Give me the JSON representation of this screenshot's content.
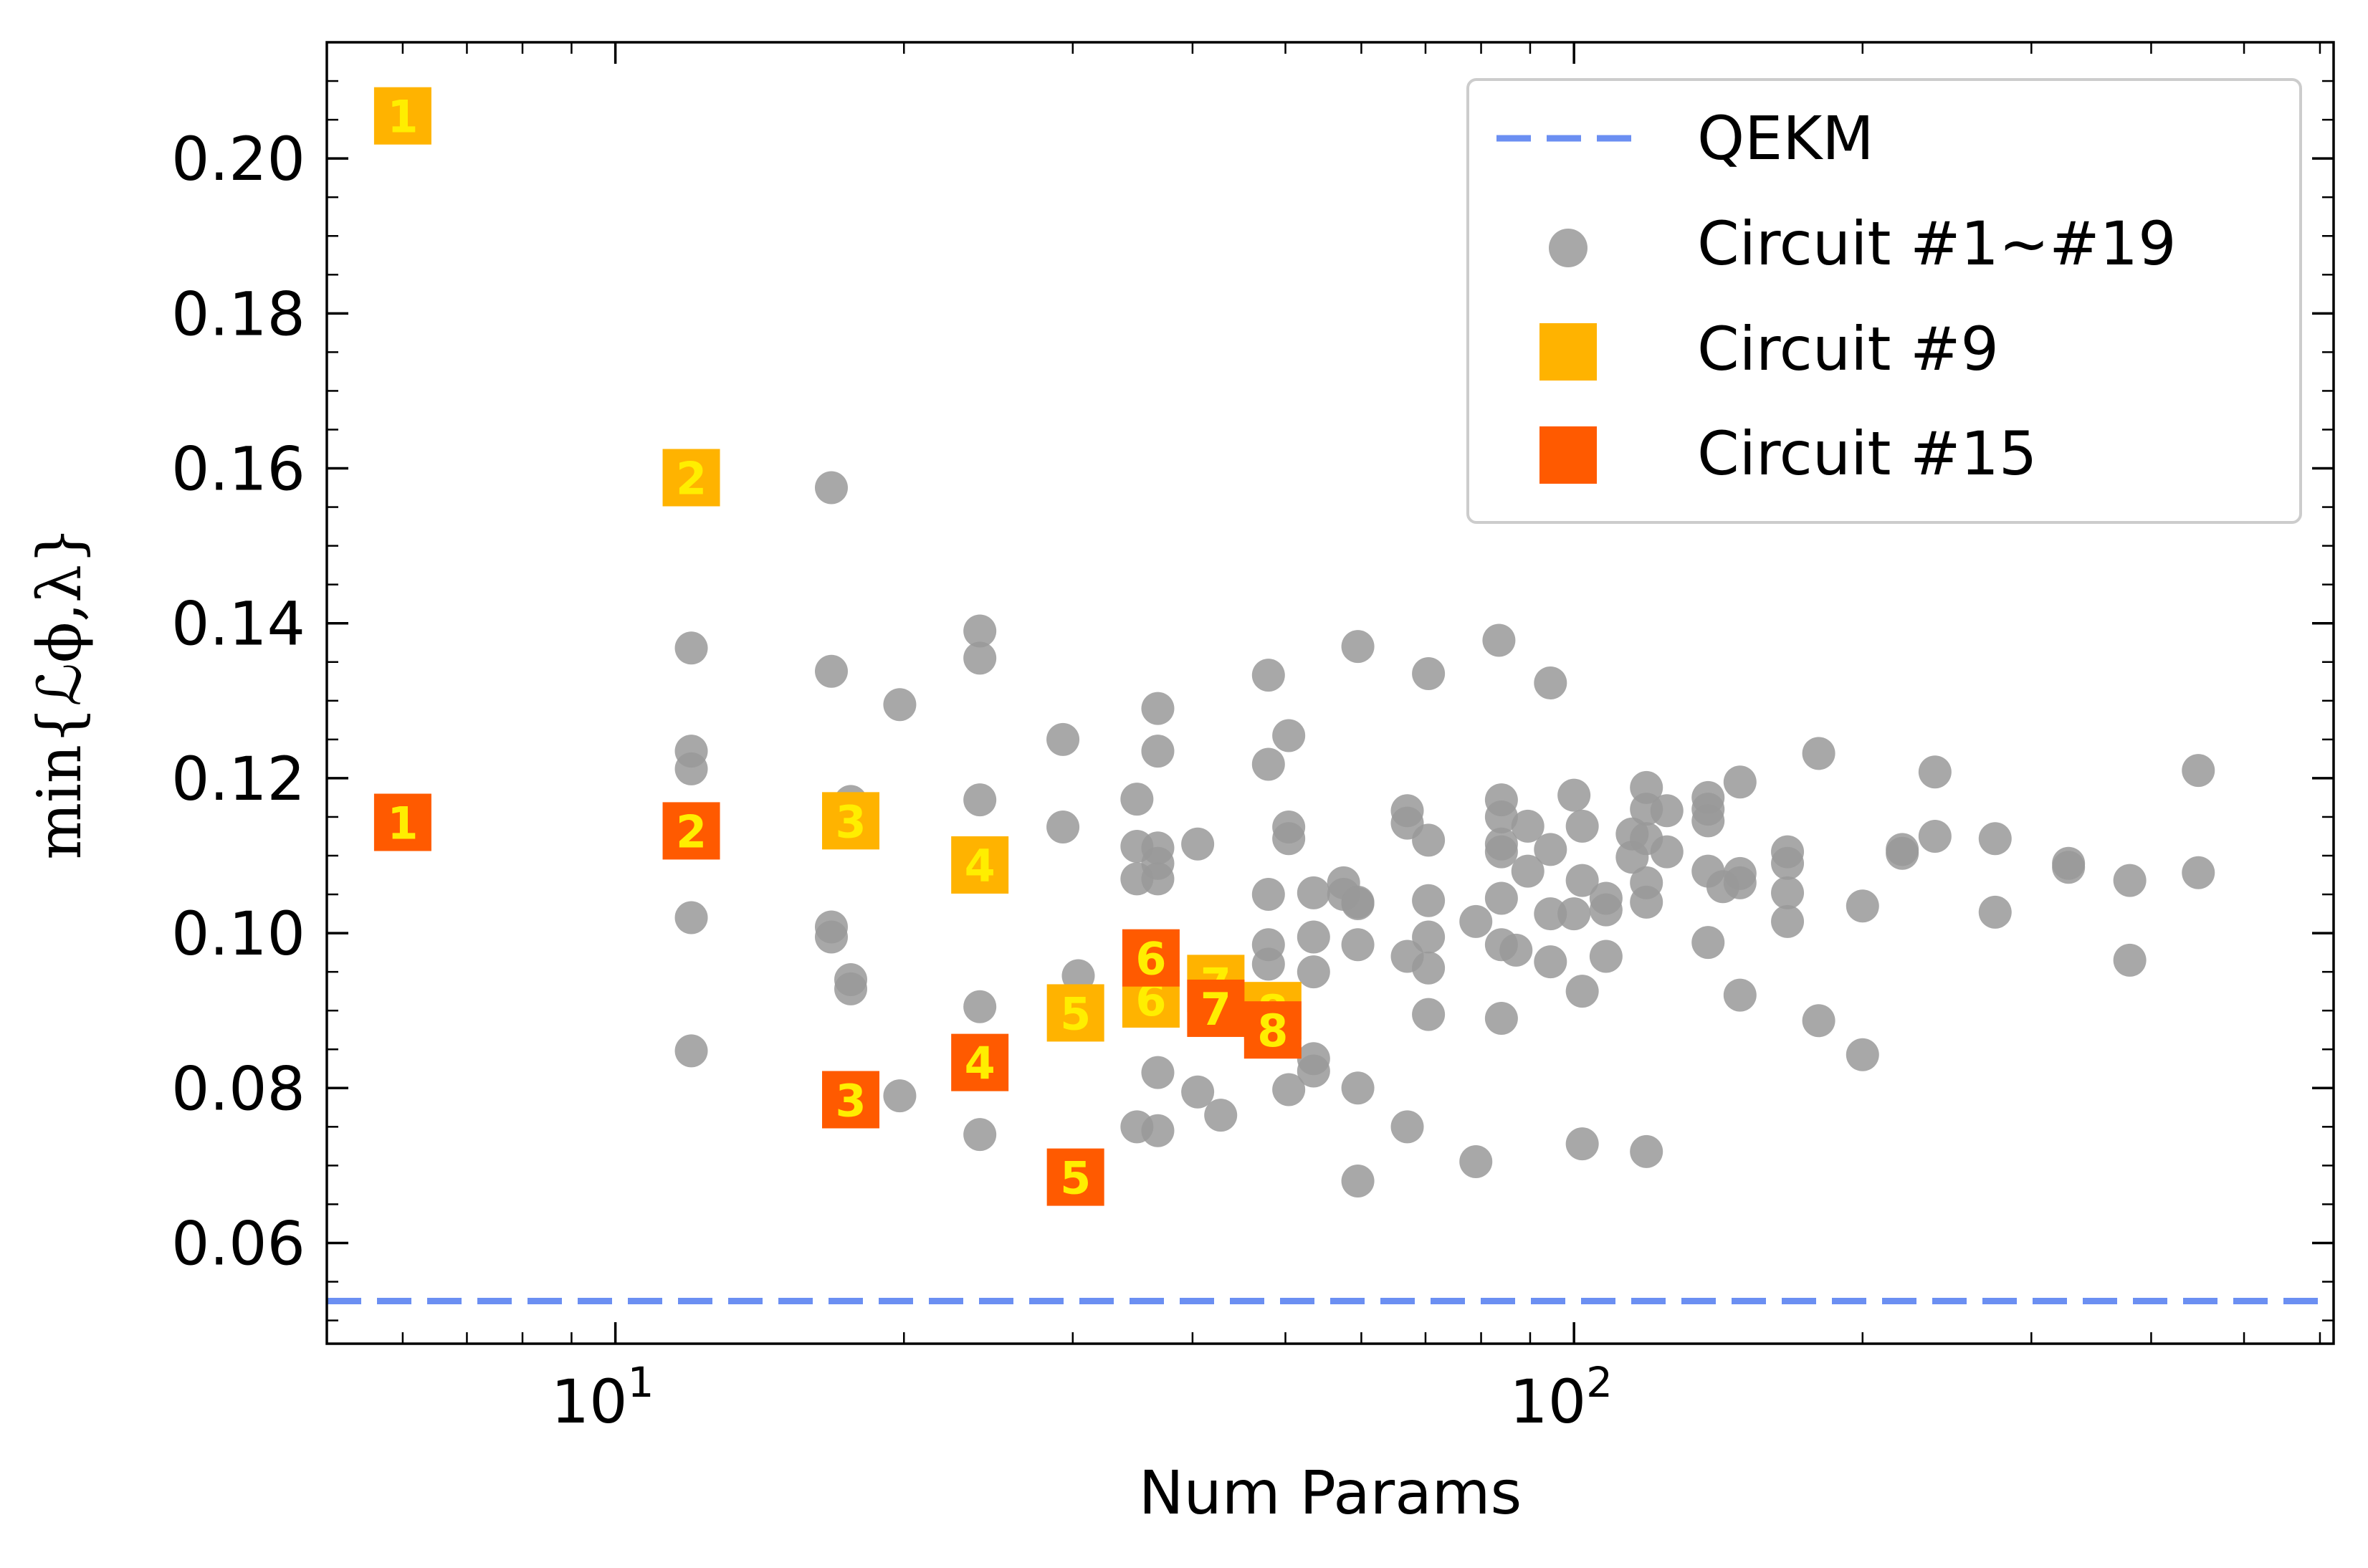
{
  "chart_data": {
    "type": "scatter",
    "xlabel": "Num Params",
    "ylabel": "min{ℒϕ,λ}",
    "xscale": "log",
    "xlim": [
      5,
      620
    ],
    "ylim": [
      0.047,
      0.215
    ],
    "x_ticks": [
      {
        "base": "10",
        "exp": "1",
        "value": 10
      },
      {
        "base": "10",
        "exp": "2",
        "value": 100
      }
    ],
    "y_ticks": [
      "0.06",
      "0.08",
      "0.10",
      "0.12",
      "0.14",
      "0.16",
      "0.18",
      "0.20"
    ],
    "grid": false,
    "legend_position": "top-right",
    "legend": [
      "QEKM",
      "Circuit #1~#19",
      "Circuit #9",
      "Circuit #15"
    ],
    "colors": {
      "qekm": "#6b8ff2",
      "grey": "#999999",
      "circuit9": "#ffb300",
      "circuit15": "#ff5a00",
      "marker_text": "#ffee00"
    },
    "qekm_line": 0.0525,
    "grey_points": [
      [
        16.8,
        0.1575
      ],
      [
        12,
        0.1368
      ],
      [
        12,
        0.1235
      ],
      [
        12,
        0.1212
      ],
      [
        12,
        0.102
      ],
      [
        12,
        0.0848
      ],
      [
        16.8,
        0.1338
      ],
      [
        16.8,
        0.1008
      ],
      [
        16.8,
        0.0995
      ],
      [
        17.6,
        0.117
      ],
      [
        17.6,
        0.094
      ],
      [
        17.6,
        0.0928
      ],
      [
        19.8,
        0.1295
      ],
      [
        19.8,
        0.079
      ],
      [
        24,
        0.139
      ],
      [
        24,
        0.1355
      ],
      [
        24,
        0.1172
      ],
      [
        24,
        0.0905
      ],
      [
        24,
        0.074
      ],
      [
        29.3,
        0.125
      ],
      [
        29.3,
        0.1137
      ],
      [
        30.4,
        0.0945
      ],
      [
        35,
        0.1173
      ],
      [
        35,
        0.1112
      ],
      [
        35,
        0.107
      ],
      [
        35,
        0.075
      ],
      [
        36.8,
        0.129
      ],
      [
        36.8,
        0.1235
      ],
      [
        36.8,
        0.111
      ],
      [
        36.8,
        0.109
      ],
      [
        36.8,
        0.107
      ],
      [
        36.8,
        0.082
      ],
      [
        36.8,
        0.0745
      ],
      [
        40.5,
        0.1115
      ],
      [
        40.5,
        0.0795
      ],
      [
        42.8,
        0.0765
      ],
      [
        48,
        0.1333
      ],
      [
        48,
        0.1218
      ],
      [
        48,
        0.105
      ],
      [
        48,
        0.0985
      ],
      [
        48,
        0.096
      ],
      [
        50.4,
        0.1255
      ],
      [
        50.4,
        0.1137
      ],
      [
        50.4,
        0.1122
      ],
      [
        50.4,
        0.0798
      ],
      [
        53.5,
        0.1052
      ],
      [
        53.5,
        0.0995
      ],
      [
        53.5,
        0.095
      ],
      [
        53.5,
        0.0838
      ],
      [
        53.5,
        0.0822
      ],
      [
        57.5,
        0.1065
      ],
      [
        57.5,
        0.105
      ],
      [
        59.5,
        0.137
      ],
      [
        59.5,
        0.104
      ],
      [
        59.5,
        0.1038
      ],
      [
        59.5,
        0.0985
      ],
      [
        59.5,
        0.08
      ],
      [
        59.5,
        0.068
      ],
      [
        67,
        0.1158
      ],
      [
        67,
        0.1142
      ],
      [
        67,
        0.097
      ],
      [
        67,
        0.075
      ],
      [
        70.5,
        0.1335
      ],
      [
        70.5,
        0.112
      ],
      [
        70.5,
        0.1042
      ],
      [
        70.5,
        0.0995
      ],
      [
        70.5,
        0.0955
      ],
      [
        70.5,
        0.0895
      ],
      [
        79,
        0.1015
      ],
      [
        79,
        0.0705
      ],
      [
        83.5,
        0.1378
      ],
      [
        84,
        0.1172
      ],
      [
        84,
        0.115
      ],
      [
        84,
        0.1115
      ],
      [
        84,
        0.1105
      ],
      [
        84,
        0.1045
      ],
      [
        84,
        0.0985
      ],
      [
        84,
        0.089
      ],
      [
        87,
        0.0978
      ],
      [
        89.5,
        0.1138
      ],
      [
        89.5,
        0.108
      ],
      [
        94.5,
        0.1323
      ],
      [
        94.5,
        0.1108
      ],
      [
        94.5,
        0.1025
      ],
      [
        94.5,
        0.0963
      ],
      [
        100,
        0.1178
      ],
      [
        100,
        0.1025
      ],
      [
        102,
        0.1138
      ],
      [
        102,
        0.1068
      ],
      [
        102,
        0.0925
      ],
      [
        102,
        0.0728
      ],
      [
        108,
        0.1045
      ],
      [
        108,
        0.103
      ],
      [
        108,
        0.097
      ],
      [
        115,
        0.1128
      ],
      [
        115,
        0.1098
      ],
      [
        119,
        0.1188
      ],
      [
        119,
        0.116
      ],
      [
        119,
        0.1122
      ],
      [
        119,
        0.1065
      ],
      [
        119,
        0.104
      ],
      [
        119,
        0.0718
      ],
      [
        125,
        0.1158
      ],
      [
        125,
        0.1105
      ],
      [
        138,
        0.1175
      ],
      [
        138,
        0.116
      ],
      [
        138,
        0.1145
      ],
      [
        138,
        0.108
      ],
      [
        138,
        0.0988
      ],
      [
        143,
        0.106
      ],
      [
        149,
        0.1195
      ],
      [
        149,
        0.1077
      ],
      [
        149,
        0.1065
      ],
      [
        149,
        0.092
      ],
      [
        167,
        0.1105
      ],
      [
        167,
        0.109
      ],
      [
        167,
        0.1052
      ],
      [
        167,
        0.1015
      ],
      [
        180,
        0.1232
      ],
      [
        180,
        0.0887
      ],
      [
        200,
        0.1035
      ],
      [
        200,
        0.0843
      ],
      [
        220,
        0.1108
      ],
      [
        220,
        0.1103
      ],
      [
        238,
        0.1208
      ],
      [
        238,
        0.1125
      ],
      [
        275,
        0.1122
      ],
      [
        275,
        0.1027
      ],
      [
        328,
        0.109
      ],
      [
        328,
        0.1085
      ],
      [
        380,
        0.1068
      ],
      [
        380,
        0.0965
      ],
      [
        448,
        0.121
      ],
      [
        448,
        0.1078
      ]
    ],
    "circuit9_points": [
      {
        "x": 6,
        "y": 0.2055,
        "label": "1"
      },
      {
        "x": 12,
        "y": 0.1588,
        "label": "2"
      },
      {
        "x": 17.6,
        "y": 0.1145,
        "label": "3"
      },
      {
        "x": 24,
        "y": 0.1088,
        "label": "4"
      },
      {
        "x": 30.2,
        "y": 0.0897,
        "label": "5"
      },
      {
        "x": 36.2,
        "y": 0.0915,
        "label": "6"
      },
      {
        "x": 42.3,
        "y": 0.0935,
        "label": "7"
      },
      {
        "x": 48.5,
        "y": 0.09,
        "label": "8"
      }
    ],
    "circuit15_points": [
      {
        "x": 6,
        "y": 0.1143,
        "label": "1"
      },
      {
        "x": 12,
        "y": 0.1132,
        "label": "2"
      },
      {
        "x": 17.6,
        "y": 0.0785,
        "label": "3"
      },
      {
        "x": 24,
        "y": 0.0833,
        "label": "4"
      },
      {
        "x": 30.2,
        "y": 0.0685,
        "label": "5"
      },
      {
        "x": 36.2,
        "y": 0.0968,
        "label": "6"
      },
      {
        "x": 42.3,
        "y": 0.0903,
        "label": "7"
      },
      {
        "x": 48.5,
        "y": 0.0875,
        "label": "8"
      }
    ]
  }
}
